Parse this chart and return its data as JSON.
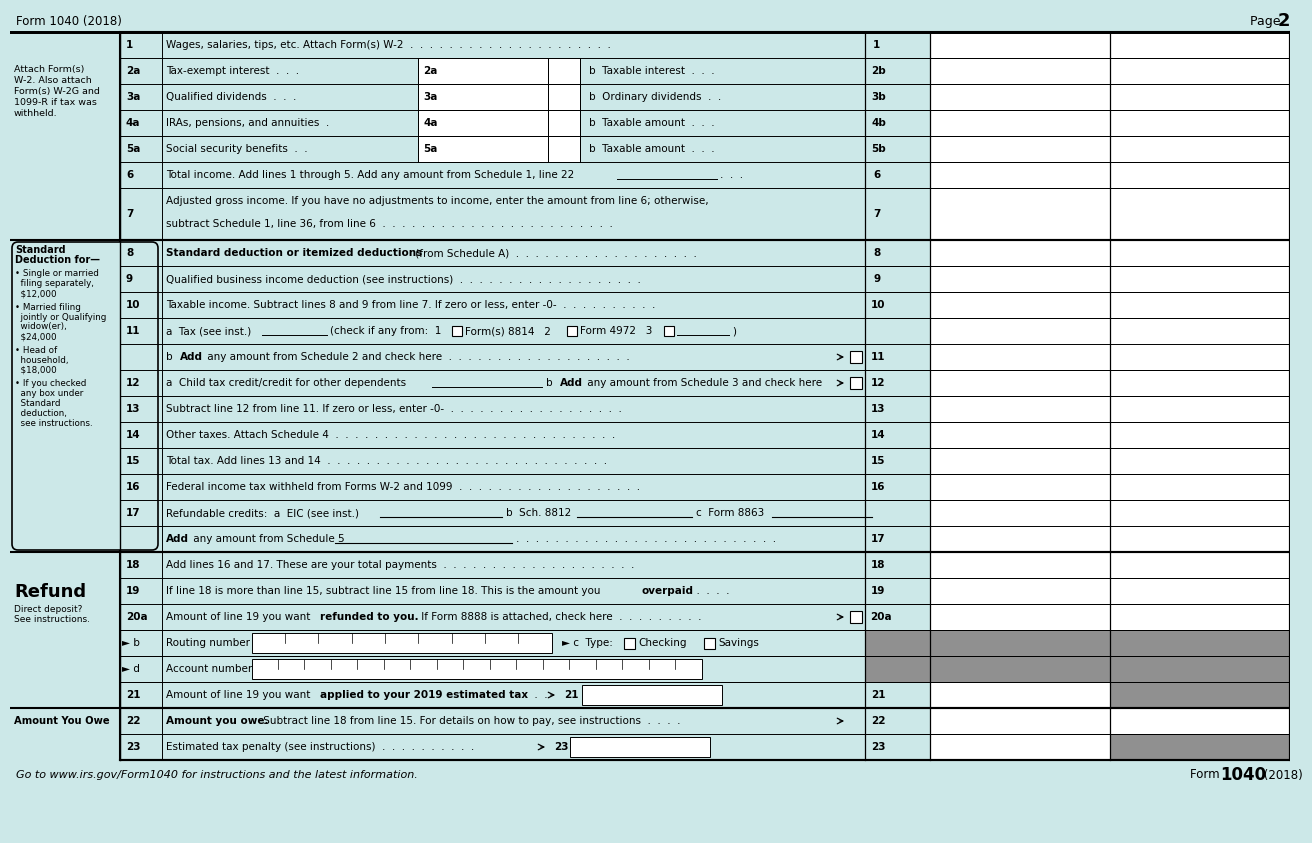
{
  "title_left": "Form 1040 (2018)",
  "title_right": "Page 2",
  "bg_color": "#cce8e8",
  "white": "#ffffff",
  "gray": "#a0a0a0",
  "dark_gray": "#909090",
  "black": "#000000",
  "footer_italic": "Go to www.irs.gov/Form1040 for instructions and the latest information.",
  "footer_bold": "1040",
  "footer_form": "Form ",
  "footer_year": "(2018)"
}
